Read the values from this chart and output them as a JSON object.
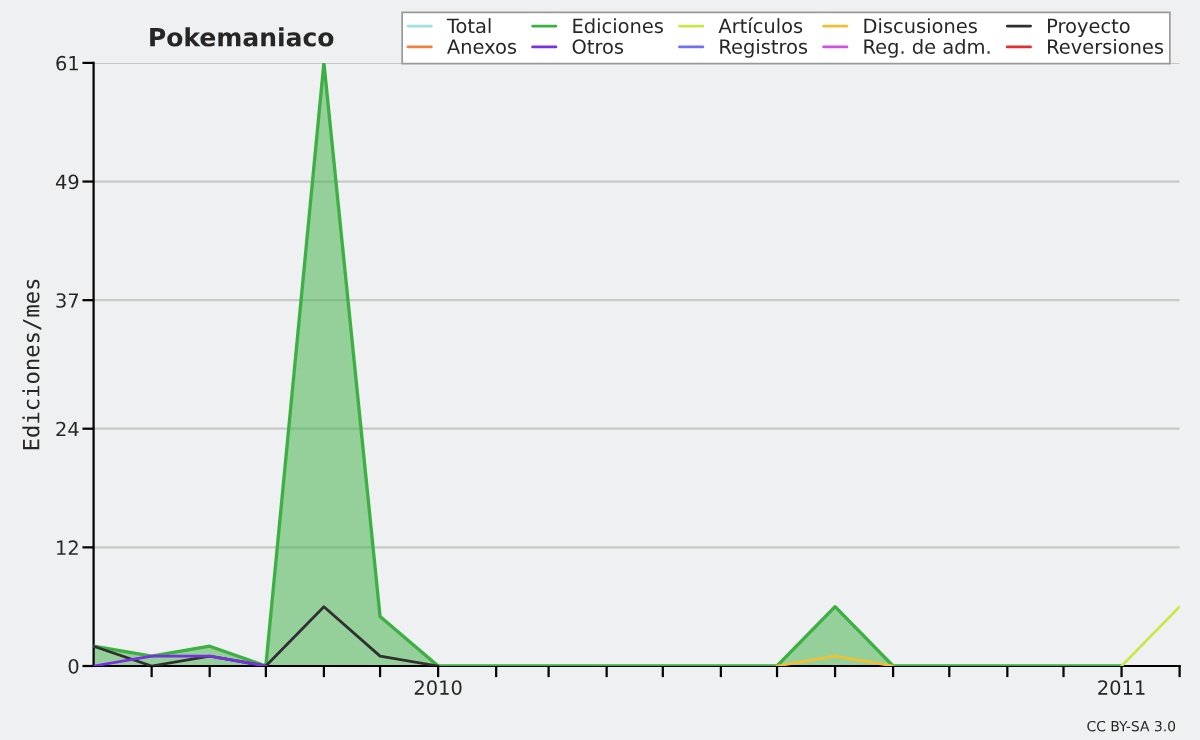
{
  "chart_data": {
    "type": "line",
    "title": "Pokemaniaco",
    "ylabel": "Ediciones/mes",
    "x": [
      "2009-07",
      "2009-08",
      "2009-09",
      "2009-10",
      "2009-11",
      "2009-12",
      "2010-01",
      "2010-02",
      "2010-03",
      "2010-04",
      "2010-05",
      "2010-06",
      "2010-07",
      "2010-08",
      "2010-09",
      "2010-10",
      "2010-11",
      "2010-12",
      "2011-01",
      "2011-02"
    ],
    "series": [
      {
        "name": "Total",
        "color": "#a0e0e0",
        "values": [
          null,
          null,
          null,
          null,
          null,
          null,
          null,
          null,
          null,
          null,
          null,
          null,
          null,
          null,
          null,
          null,
          null,
          null,
          null,
          null
        ]
      },
      {
        "name": "Ediciones",
        "type": "area",
        "color": "#3cb043",
        "values": [
          2,
          1,
          2,
          0,
          61,
          5,
          0,
          0,
          0,
          0,
          0,
          0,
          0,
          6,
          0,
          0,
          0,
          0,
          0,
          null
        ]
      },
      {
        "name": "Artículos",
        "color": "#c8e84a",
        "values": [
          null,
          null,
          null,
          null,
          null,
          null,
          null,
          null,
          null,
          null,
          null,
          null,
          null,
          null,
          null,
          null,
          null,
          null,
          0,
          6
        ]
      },
      {
        "name": "Discusiones",
        "color": "#f0c030",
        "values": [
          null,
          null,
          null,
          null,
          null,
          null,
          null,
          null,
          null,
          null,
          null,
          null,
          0,
          1,
          0,
          null,
          null,
          null,
          null,
          null
        ]
      },
      {
        "name": "Proyecto",
        "color": "#303030",
        "values": [
          2,
          0,
          1,
          0,
          6,
          1,
          0,
          null,
          null,
          null,
          null,
          null,
          null,
          null,
          null,
          null,
          null,
          null,
          null,
          null
        ]
      },
      {
        "name": "Anexos",
        "color": "#f08040",
        "values": [
          null,
          null,
          null,
          null,
          null,
          null,
          null,
          null,
          null,
          null,
          null,
          null,
          null,
          null,
          null,
          null,
          null,
          null,
          null,
          null
        ]
      },
      {
        "name": "Otros",
        "color": "#7a30e0",
        "values": [
          0,
          1,
          1,
          0,
          null,
          null,
          null,
          null,
          null,
          null,
          null,
          null,
          null,
          null,
          null,
          null,
          null,
          null,
          null,
          null
        ]
      },
      {
        "name": "Registros",
        "color": "#7070f0",
        "values": [
          null,
          null,
          null,
          null,
          null,
          null,
          null,
          null,
          null,
          null,
          null,
          null,
          null,
          null,
          null,
          null,
          null,
          null,
          null,
          null
        ]
      },
      {
        "name": "Reg. de adm.",
        "color": "#d050e0",
        "values": [
          null,
          null,
          null,
          null,
          null,
          null,
          null,
          null,
          null,
          null,
          null,
          null,
          null,
          null,
          null,
          null,
          null,
          null,
          null,
          null
        ]
      },
      {
        "name": "Reversiones",
        "color": "#e03030",
        "values": [
          null,
          null,
          null,
          null,
          null,
          null,
          null,
          null,
          null,
          null,
          null,
          null,
          null,
          null,
          null,
          null,
          null,
          null,
          null,
          null
        ]
      }
    ],
    "xlim": [
      "2009-07",
      "2011-02"
    ],
    "xticks": [
      {
        "value": "2009-08",
        "label": null
      },
      {
        "value": "2009-09",
        "label": null
      },
      {
        "value": "2009-10",
        "label": null
      },
      {
        "value": "2009-11",
        "label": null
      },
      {
        "value": "2009-12",
        "label": null
      },
      {
        "value": "2010-01",
        "label": "2010"
      },
      {
        "value": "2010-02",
        "label": null
      },
      {
        "value": "2010-03",
        "label": null
      },
      {
        "value": "2010-04",
        "label": null
      },
      {
        "value": "2010-05",
        "label": null
      },
      {
        "value": "2010-06",
        "label": null
      },
      {
        "value": "2010-07",
        "label": null
      },
      {
        "value": "2010-08",
        "label": null
      },
      {
        "value": "2010-09",
        "label": null
      },
      {
        "value": "2010-10",
        "label": null
      },
      {
        "value": "2010-11",
        "label": null
      },
      {
        "value": "2010-12",
        "label": null
      },
      {
        "value": "2011-01",
        "label": "2011"
      },
      {
        "value": "2011-02",
        "label": null
      }
    ],
    "ylim": [
      0,
      61
    ],
    "yticks": [
      0,
      12,
      24,
      37,
      49,
      61
    ],
    "grid": "y",
    "legend": "top right",
    "annotations": [
      "CC BY-SA 3.0"
    ]
  }
}
